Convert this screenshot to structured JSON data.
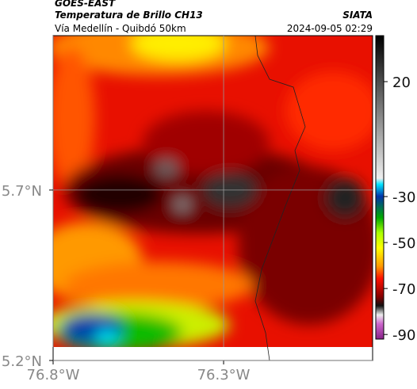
{
  "header": {
    "satellite": "GOES-EAST",
    "product": "Temperatura de Brillo CH13",
    "source": "SIATA",
    "region": "Vía Medellín - Quibdó 50km",
    "timestamp": "2024-09-05 02:29"
  },
  "map": {
    "xlim": [
      -76.8,
      -75.863
    ],
    "ylim": [
      5.2,
      6.153
    ],
    "xticks": [
      {
        "value": -76.8,
        "label": "76.8°W"
      },
      {
        "value": -76.3,
        "label": "76.3°W"
      }
    ],
    "yticks": [
      {
        "value": 5.2,
        "label": "5.2°N"
      },
      {
        "value": 5.7,
        "label": "5.7°N"
      }
    ],
    "grid": true
  },
  "colorbar": {
    "lim": [
      -92,
      40
    ],
    "ticks": [
      20,
      -30,
      -50,
      -70,
      -90
    ]
  }
}
